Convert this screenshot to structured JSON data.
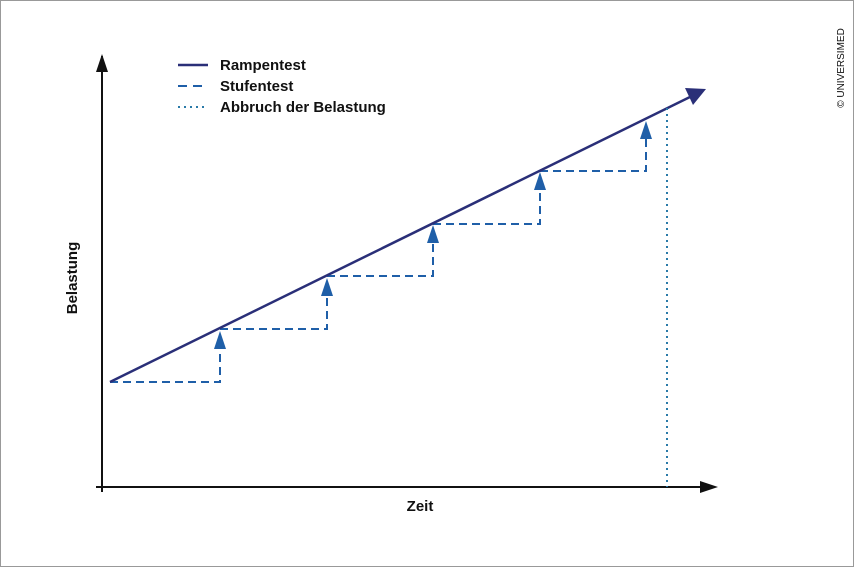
{
  "legend": {
    "items": [
      "Rampentest",
      "Stufentest",
      "Abbruch der Belastung"
    ]
  },
  "axes": {
    "y_label": "Belastung",
    "x_label": "Zeit"
  },
  "credit": "© UNIVERSIMED"
}
